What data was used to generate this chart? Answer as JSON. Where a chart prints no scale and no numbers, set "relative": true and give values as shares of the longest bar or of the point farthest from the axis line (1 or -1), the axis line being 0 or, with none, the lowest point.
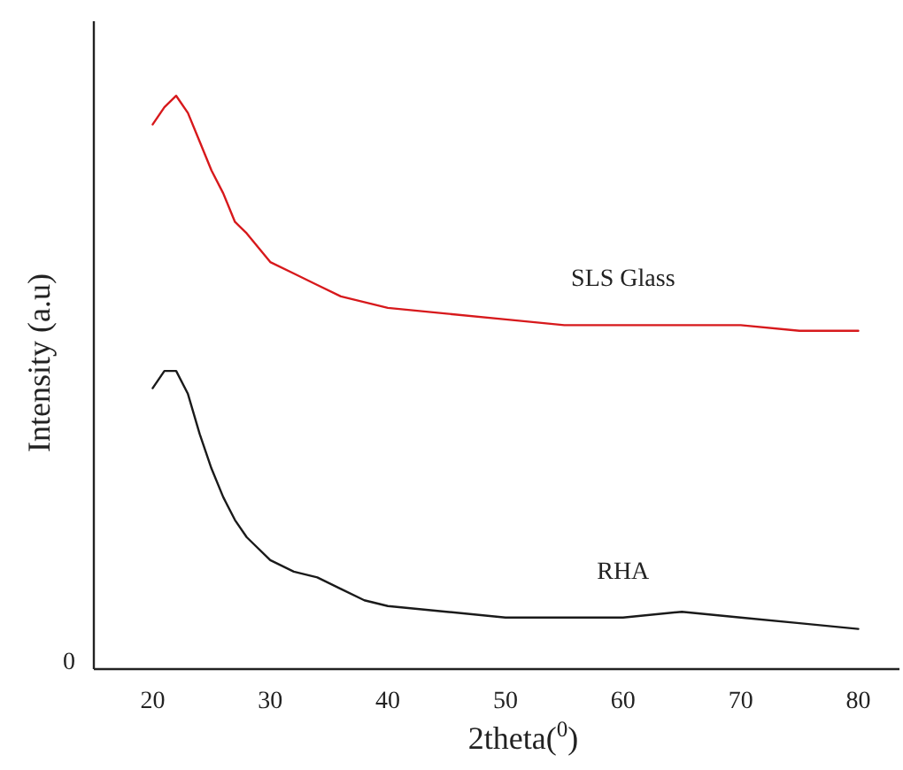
{
  "chart_data": {
    "type": "line",
    "relative": true,
    "xlabel": "2theta($^{0}$)",
    "ylabel": "Intensity (a.u)",
    "xlim": [
      15,
      83.5
    ],
    "xticks": [
      20,
      30,
      40,
      50,
      60,
      70,
      80
    ],
    "grid": false,
    "marker": "none",
    "line_style": "solid",
    "annotations": [
      "0"
    ],
    "x": [
      20,
      21,
      22,
      23,
      24,
      25,
      26,
      27,
      28,
      30,
      32,
      34,
      36,
      38,
      40,
      45,
      50,
      55,
      60,
      65,
      70,
      75,
      80
    ],
    "series": [
      {
        "name": "SLS Glass",
        "color": "#d7191c",
        "values": [
          0.95,
          0.98,
          1.0,
          0.97,
          0.92,
          0.87,
          0.83,
          0.78,
          0.76,
          0.71,
          0.69,
          0.67,
          0.65,
          0.64,
          0.63,
          0.62,
          0.61,
          0.6,
          0.6,
          0.6,
          0.6,
          0.59,
          0.59
        ]
      },
      {
        "name": "RHA",
        "color": "#1a1a1a",
        "values": [
          0.49,
          0.52,
          0.52,
          0.48,
          0.41,
          0.35,
          0.3,
          0.26,
          0.23,
          0.19,
          0.17,
          0.16,
          0.14,
          0.12,
          0.11,
          0.1,
          0.09,
          0.09,
          0.09,
          0.1,
          0.09,
          0.08,
          0.07
        ]
      }
    ]
  }
}
